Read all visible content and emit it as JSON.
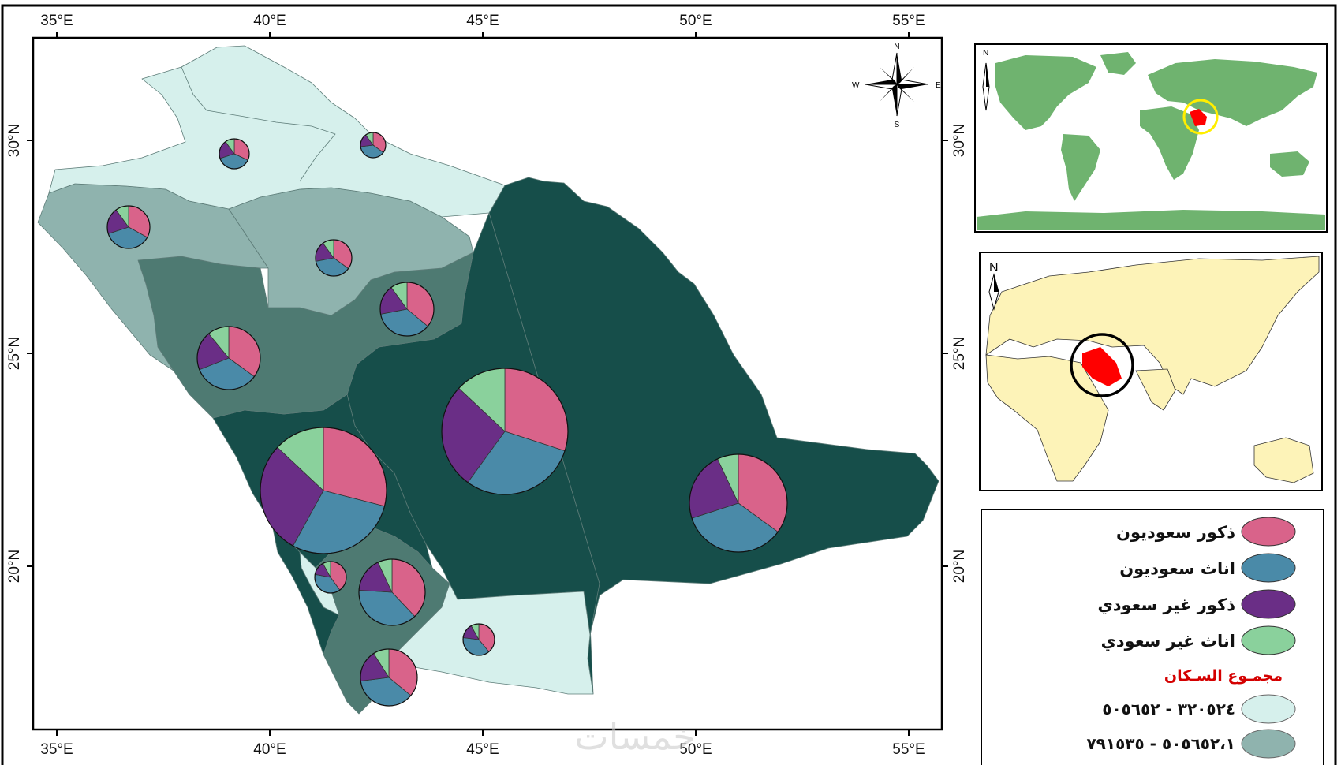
{
  "axes": {
    "lon_labels": [
      "35°E",
      "40°E",
      "45°E",
      "50°E",
      "55°E"
    ],
    "lat_labels": [
      "30°N",
      "25°N",
      "20°N"
    ]
  },
  "colors": {
    "saudi_male": "#d9638a",
    "saudi_female": "#4a8aa8",
    "nonsaudi_male": "#6a2e86",
    "nonsaudi_female": "#8ad19c",
    "class1": "#d6f0ec",
    "class2": "#8fb3ae",
    "class3": "#4e7a72",
    "class4": "#164e4a",
    "world_land": "#6fb36f",
    "world_land_alt": "#fdf3b8",
    "highlight": "#ff0000"
  },
  "compass": {
    "n": "N",
    "s": "S",
    "e": "E",
    "w": "W"
  },
  "inset_world": {
    "north": "N"
  },
  "inset_region": {
    "north": "N"
  },
  "legend": {
    "items": [
      {
        "label": "ذكور سعوديون",
        "color": "#d9638a"
      },
      {
        "label": "اناث سعوديون",
        "color": "#4a8aa8"
      },
      {
        "label": "ذكور غير سعودي",
        "color": "#6a2e86"
      },
      {
        "label": "اناث غير سعودي",
        "color": "#8ad19c"
      }
    ],
    "population_title": "مجمـوع السـكان",
    "ranges": [
      {
        "label": "٣٢٠٥٢٤ - ٥٠٥٦٥٢",
        "color": "#d6f0ec"
      },
      {
        "label": "٥٠٥٦٥٢،١ - ٧٩١٥٣٥",
        "color": "#8fb3ae"
      }
    ]
  },
  "watermark": "خمسات",
  "pies": [
    {
      "name": "tabuk-north",
      "shares": [
        0.32,
        0.38,
        0.2,
        0.1
      ]
    },
    {
      "name": "north-border",
      "shares": [
        0.35,
        0.38,
        0.17,
        0.1
      ]
    },
    {
      "name": "tabuk",
      "shares": [
        0.33,
        0.37,
        0.2,
        0.1
      ]
    },
    {
      "name": "hail",
      "shares": [
        0.35,
        0.37,
        0.18,
        0.1
      ]
    },
    {
      "name": "qassim",
      "shares": [
        0.36,
        0.36,
        0.18,
        0.1
      ]
    },
    {
      "name": "madinah",
      "shares": [
        0.35,
        0.34,
        0.2,
        0.11
      ]
    },
    {
      "name": "riyadh",
      "shares": [
        0.3,
        0.3,
        0.27,
        0.13
      ]
    },
    {
      "name": "makkah",
      "shares": [
        0.29,
        0.29,
        0.29,
        0.13
      ]
    },
    {
      "name": "eastern",
      "shares": [
        0.35,
        0.35,
        0.23,
        0.07
      ]
    },
    {
      "name": "baha",
      "shares": [
        0.4,
        0.38,
        0.14,
        0.08
      ]
    },
    {
      "name": "asir",
      "shares": [
        0.38,
        0.38,
        0.17,
        0.07
      ]
    },
    {
      "name": "jazan",
      "shares": [
        0.39,
        0.38,
        0.15,
        0.08
      ]
    },
    {
      "name": "najran",
      "shares": [
        0.36,
        0.37,
        0.18,
        0.09
      ]
    }
  ]
}
